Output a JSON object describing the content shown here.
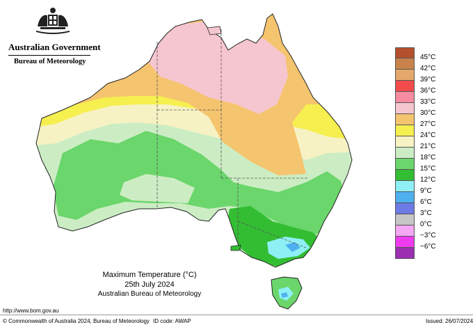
{
  "header": {
    "government_name": "Australian Government",
    "bureau_name": "Bureau of Meteorology"
  },
  "legend": {
    "labels": [
      "45°C",
      "42°C",
      "39°C",
      "36°C",
      "33°C",
      "30°C",
      "27°C",
      "24°C",
      "21°C",
      "18°C",
      "15°C",
      "12°C",
      "9°C",
      "6°C",
      "3°C",
      "0°C",
      "−3°C",
      "−6°C"
    ],
    "colors": [
      "#b5502d",
      "#c9834a",
      "#e5a86a",
      "#f24c4c",
      "#f58ca0",
      "#f5c6cf",
      "#f5c46e",
      "#f5ef50",
      "#f7f2c3",
      "#ccedc4",
      "#6bd66b",
      "#33bd33",
      "#8ef0f5",
      "#4fb0ef",
      "#6d7be5",
      "#c6c6c6",
      "#f5a6f5",
      "#f03cf0",
      "#9a2fb0"
    ]
  },
  "caption": {
    "title": "Maximum Temperature (°C)",
    "date": "25th July 2024",
    "source": "Australian Bureau of Meteorology"
  },
  "footer": {
    "url": "http://www.bom.gov.au",
    "copyright": "© Commonwealth of Australia 2024, Bureau of Meteorology",
    "id_code": "ID code: AWAP",
    "issued": "Issued: 26/07/2024"
  },
  "map": {
    "zone_colors": {
      "band_27": "#f5c46e",
      "band_24": "#f5ef50",
      "band_21": "#f7f2c3",
      "band_18": "#ccedc4",
      "band_15": "#6bd66b",
      "band_12": "#33bd33",
      "band_9": "#8ef0f5",
      "band_6": "#4fb0ef",
      "band_30": "#f5c6cf",
      "ocean": "#ffffff"
    }
  }
}
